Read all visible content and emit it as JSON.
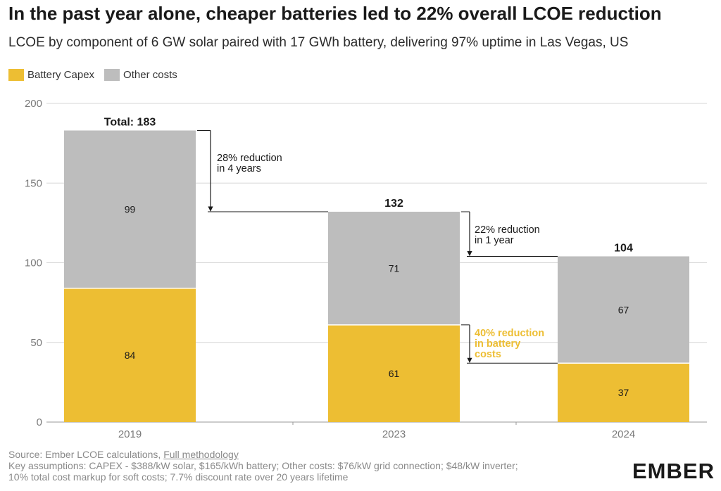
{
  "title": "In the past year alone, cheaper batteries led to 22% overall LCOE reduction",
  "subtitle": "LCOE by component of 6 GW solar paired with 17 GWh battery, delivering 97% uptime in Las Vegas, US",
  "legend": [
    {
      "label": "Battery Capex",
      "color": "#EDBE33"
    },
    {
      "label": "Other costs",
      "color": "#BDBDBD"
    }
  ],
  "chart_data": {
    "type": "bar",
    "stacked": true,
    "categories": [
      "2019",
      "2023",
      "2024"
    ],
    "series": [
      {
        "name": "Battery Capex",
        "values": [
          84,
          61,
          37
        ],
        "color": "#EDBE33"
      },
      {
        "name": "Other costs",
        "values": [
          99,
          71,
          67
        ],
        "color": "#BDBDBD"
      }
    ],
    "totals": [
      "Total: 183",
      "132",
      "104"
    ],
    "ylim": [
      0,
      200
    ],
    "yticks": [
      0,
      50,
      100,
      150,
      200
    ],
    "grid": true,
    "legend_position": "top-left",
    "annotations": [
      {
        "text": [
          "28% reduction",
          "in 4 years"
        ],
        "color": "#1a1a1a",
        "from": 183,
        "to": 132
      },
      {
        "text": [
          "22% reduction",
          "in 1 year"
        ],
        "color": "#1a1a1a",
        "from": 132,
        "to": 104
      },
      {
        "text": [
          "40% reduction",
          "in battery",
          "costs"
        ],
        "color": "#EDBE33",
        "from": 61,
        "to": 37
      }
    ]
  },
  "footer": {
    "source_prefix": "Source: Ember LCOE calculations, ",
    "source_link": "Full methodology",
    "line2": "Key assumptions: CAPEX - $388/kW solar, $165/kWh battery; Other costs: $76/kW grid connection; $48/kW inverter;",
    "line3": "10% total cost markup for soft costs; 7.7% discount rate over 20 years lifetime"
  },
  "logo": "EMBER"
}
